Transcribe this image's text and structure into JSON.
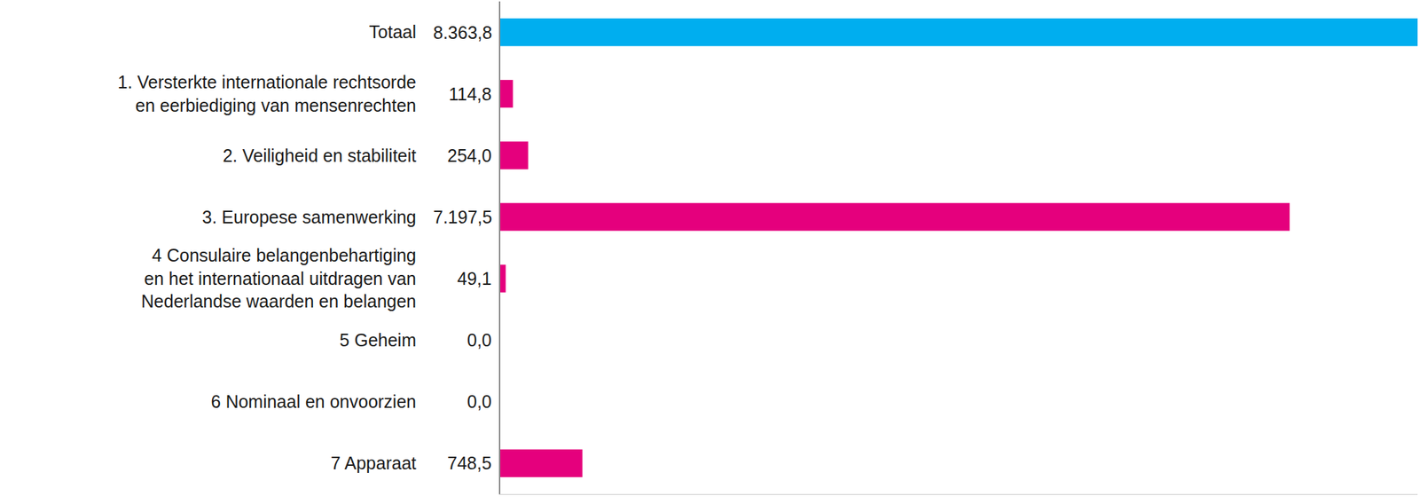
{
  "chart_data": {
    "type": "bar",
    "orientation": "horizontal",
    "categories": [
      "Totaal",
      "1. Versterkte internationale rechtsorde\nen eerbiediging van mensenrechten",
      "2. Veiligheid en stabiliteit",
      "3. Europese samenwerking",
      "4 Consulaire belangenbehartiging\nen het internationaal uitdragen van\nNederlandse waarden en belangen",
      "5 Geheim",
      "6 Nominaal en onvoorzien",
      "7 Apparaat"
    ],
    "values": [
      8363.8,
      114.8,
      254.0,
      7197.5,
      49.1,
      0.0,
      0.0,
      748.5
    ],
    "value_labels": [
      "8.363,8",
      "114,8",
      "254,0",
      "7.197,5",
      "49,1",
      "0,0",
      "0,0",
      "748,5"
    ],
    "colors": [
      "#00aeef",
      "#e5007d",
      "#e5007d",
      "#e5007d",
      "#e5007d",
      "#e5007d",
      "#e5007d",
      "#e5007d"
    ],
    "data_labels": true,
    "tick_labels": "y",
    "xlim": [
      0,
      8363.8
    ],
    "xticks": [],
    "grid": false
  }
}
